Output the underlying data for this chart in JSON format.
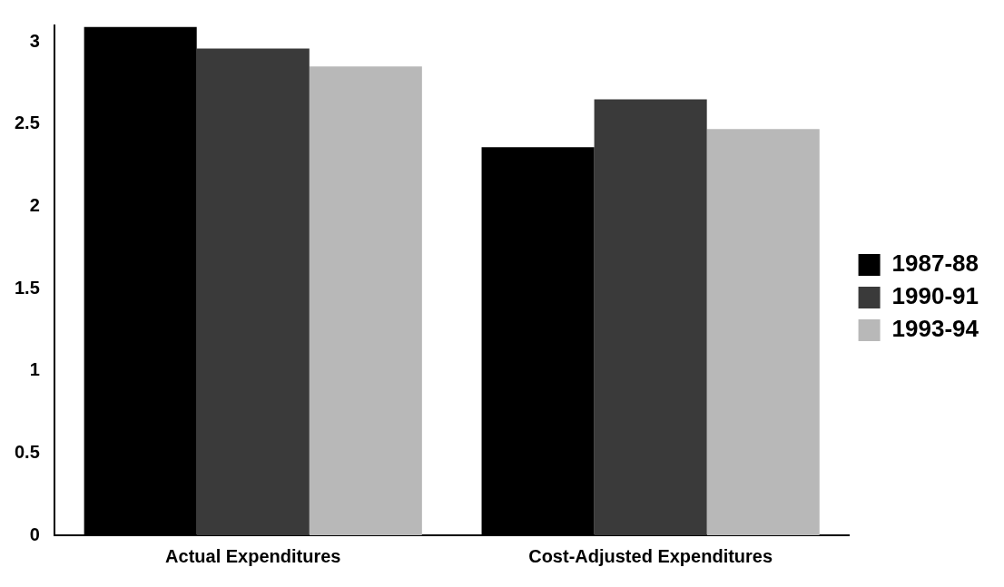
{
  "chart_data": {
    "type": "bar",
    "categories": [
      "Actual Expenditures",
      "Cost-Adjusted Expenditures"
    ],
    "series": [
      {
        "name": "1987-88",
        "color": "#000000",
        "values": [
          3.09,
          2.36
        ]
      },
      {
        "name": "1990-91",
        "color": "#3a3a3a",
        "values": [
          2.96,
          2.65
        ]
      },
      {
        "name": "1993-94",
        "color": "#b8b8b8",
        "values": [
          2.85,
          2.47
        ]
      }
    ],
    "ylim": [
      0,
      3.1
    ],
    "yticks": [
      0,
      0.5,
      1,
      1.5,
      2,
      2.5,
      3
    ],
    "grid": false,
    "legend": "right"
  }
}
